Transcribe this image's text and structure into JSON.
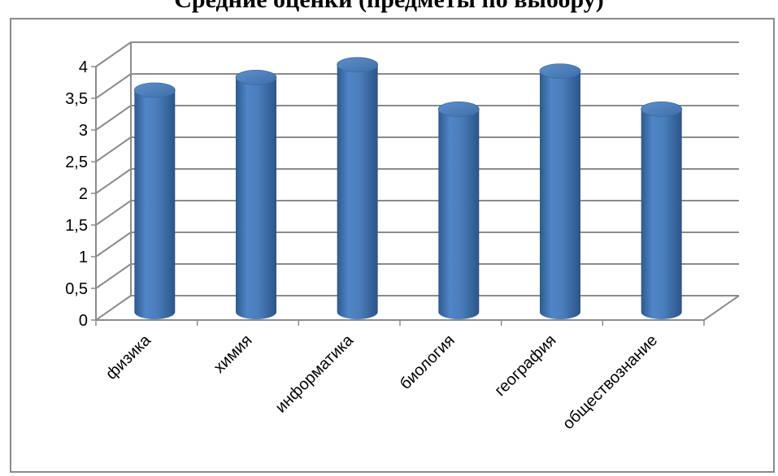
{
  "chart_data": {
    "type": "bar",
    "title": "Средние оценки (предметы по выбору)",
    "xlabel": "",
    "ylabel": "",
    "categories": [
      "физика",
      "химия",
      "информатика",
      "биология",
      "география",
      "обществознание"
    ],
    "values": [
      3.5,
      3.7,
      3.9,
      3.2,
      3.8,
      3.2
    ],
    "ylim": [
      0,
      4
    ],
    "yticks": [
      "0",
      "0,5",
      "1",
      "1,5",
      "2",
      "2,5",
      "3",
      "3,5",
      "4"
    ],
    "grid": true,
    "legend": "none",
    "bar_style": "3d-cylinder",
    "colors": {
      "bar": "#4a7ebb",
      "bar_dark": "#2c5a8f",
      "bar_light": "#7da7d9",
      "grid": "#8c8c8c"
    }
  }
}
